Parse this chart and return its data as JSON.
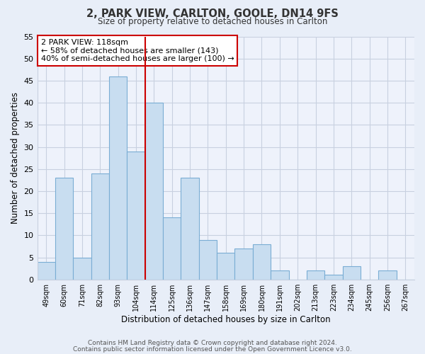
{
  "title": "2, PARK VIEW, CARLTON, GOOLE, DN14 9FS",
  "subtitle": "Size of property relative to detached houses in Carlton",
  "xlabel": "Distribution of detached houses by size in Carlton",
  "ylabel": "Number of detached properties",
  "bar_color": "#c8ddf0",
  "bar_edge_color": "#7aadd4",
  "categories": [
    "49sqm",
    "60sqm",
    "71sqm",
    "82sqm",
    "93sqm",
    "104sqm",
    "114sqm",
    "125sqm",
    "136sqm",
    "147sqm",
    "158sqm",
    "169sqm",
    "180sqm",
    "191sqm",
    "202sqm",
    "213sqm",
    "223sqm",
    "234sqm",
    "245sqm",
    "256sqm",
    "267sqm"
  ],
  "values": [
    4,
    23,
    5,
    24,
    46,
    29,
    40,
    14,
    23,
    9,
    6,
    7,
    8,
    2,
    0,
    2,
    1,
    3,
    0,
    2,
    0
  ],
  "ylim": [
    0,
    55
  ],
  "yticks": [
    0,
    5,
    10,
    15,
    20,
    25,
    30,
    35,
    40,
    45,
    50,
    55
  ],
  "vline_x_index": 6,
  "vline_color": "#cc0000",
  "annotation_title": "2 PARK VIEW: 118sqm",
  "annotation_line1": "← 58% of detached houses are smaller (143)",
  "annotation_line2": "40% of semi-detached houses are larger (100) →",
  "annotation_box_color": "#ffffff",
  "annotation_box_edge": "#cc0000",
  "footer1": "Contains HM Land Registry data © Crown copyright and database right 2024.",
  "footer2": "Contains public sector information licensed under the Open Government Licence v3.0.",
  "bg_color": "#e8eef8",
  "grid_color": "#c8d0e0",
  "plot_bg_color": "#eef2fb"
}
